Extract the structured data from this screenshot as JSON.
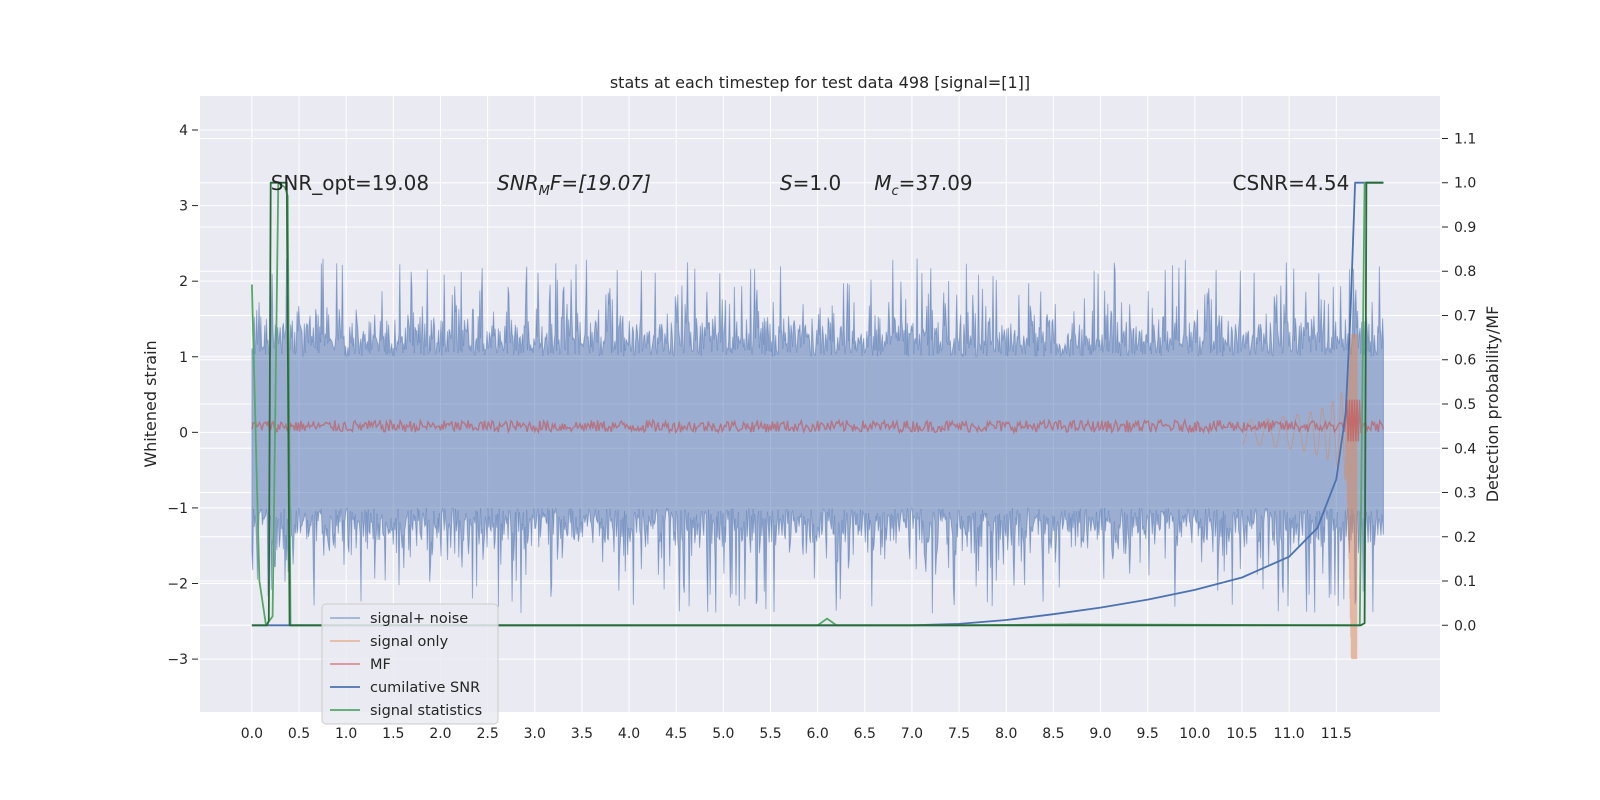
{
  "chart_data": {
    "type": "line",
    "title": "stats at each timestep for test data 498 [signal=[1]]",
    "ylabel": "Whitened strain",
    "y2label": "Detection probability/MF",
    "xlim": [
      -0.55,
      12.6
    ],
    "ylim": [
      -3.7,
      4.45
    ],
    "y2lim": [
      -0.196,
      1.196
    ],
    "x_ticks": [
      "0.0",
      "0.5",
      "1.0",
      "1.5",
      "2.0",
      "2.5",
      "3.0",
      "3.5",
      "4.0",
      "4.5",
      "5.0",
      "5.5",
      "6.0",
      "6.5",
      "7.0",
      "7.5",
      "8.0",
      "8.5",
      "9.0",
      "9.5",
      "10.0",
      "10.5",
      "11.0",
      "11.5"
    ],
    "y_ticks": [
      "−3",
      "−2",
      "−1",
      "0",
      "1",
      "2",
      "3",
      "4"
    ],
    "y2_ticks": [
      "0.0",
      "0.1",
      "0.2",
      "0.3",
      "0.4",
      "0.5",
      "0.6",
      "0.7",
      "0.8",
      "0.9",
      "1.0",
      "1.1"
    ],
    "grid": true,
    "legend_position": "lower-left",
    "annotations": [
      {
        "text": "SNR_opt=19.08",
        "x": 0.2,
        "y": 3.3,
        "italic": false
      },
      {
        "text": "SNR",
        "sub": "M",
        "after": "F=[19.07]",
        "x": 2.6,
        "y": 3.3,
        "italic": true
      },
      {
        "text": "S",
        "after": "=1.0",
        "x": 5.6,
        "y": 3.3,
        "italic": true
      },
      {
        "text": "M",
        "sub": "c",
        "after": "=37.09",
        "x": 6.6,
        "y": 3.3,
        "italic": true
      },
      {
        "text": "CSNR=4.54",
        "x": 10.4,
        "y": 3.3,
        "italic": false
      }
    ],
    "series": [
      {
        "name": "signal+ noise",
        "axis": "left",
        "color": "#4c72b0",
        "alpha": 0.5,
        "kind": "noise_band",
        "x_range": [
          0.0,
          12.0
        ],
        "band_core": [
          -1.0,
          1.0
        ],
        "peak_max": 2.3,
        "trough_min": -2.7
      },
      {
        "name": "signal only",
        "axis": "left",
        "color": "#dd8452",
        "alpha": 0.5,
        "kind": "chirp",
        "x_range": [
          10.5,
          11.8
        ],
        "peak": 1.3,
        "trough": -3.0
      },
      {
        "name": "MF",
        "axis": "left",
        "color": "#c44e52",
        "alpha": 0.6,
        "kind": "mf_band",
        "x_range": [
          0.0,
          12.0
        ],
        "center": 0.08,
        "amplitude": 0.08
      },
      {
        "name": "cumilative SNR",
        "axis": "right",
        "color": "#4c72b0",
        "kind": "curve",
        "points": [
          [
            0.0,
            0.0
          ],
          [
            7.0,
            0.0
          ],
          [
            7.5,
            0.003
          ],
          [
            8.0,
            0.012
          ],
          [
            8.5,
            0.025
          ],
          [
            9.0,
            0.04
          ],
          [
            9.5,
            0.058
          ],
          [
            10.0,
            0.08
          ],
          [
            10.5,
            0.108
          ],
          [
            11.0,
            0.155
          ],
          [
            11.3,
            0.22
          ],
          [
            11.5,
            0.33
          ],
          [
            11.6,
            0.48
          ],
          [
            11.65,
            0.7
          ],
          [
            11.7,
            1.0
          ],
          [
            12.0,
            1.0
          ]
        ]
      },
      {
        "name": "signal statistics",
        "axis": "right",
        "color": "#55a868",
        "kind": "curve",
        "points": [
          [
            0.0,
            0.77
          ],
          [
            0.08,
            0.1
          ],
          [
            0.15,
            0.0
          ],
          [
            0.22,
            0.02
          ],
          [
            0.28,
            1.0
          ],
          [
            0.35,
            0.99
          ],
          [
            0.38,
            0.97
          ],
          [
            0.41,
            0.0
          ],
          [
            6.0,
            0.0
          ],
          [
            6.1,
            0.015
          ],
          [
            6.2,
            0.0
          ],
          [
            7.5,
            0.0
          ],
          [
            8.7,
            0.002
          ],
          [
            11.75,
            0.0
          ],
          [
            11.8,
            1.0
          ],
          [
            12.0,
            1.0
          ]
        ]
      },
      {
        "name": "",
        "axis": "right",
        "color": "#2a6b3a",
        "kind": "curve",
        "legend": false,
        "points": [
          [
            0.0,
            0.0
          ],
          [
            0.16,
            0.0
          ],
          [
            0.18,
            0.01
          ],
          [
            0.2,
            1.0
          ],
          [
            0.37,
            1.0
          ],
          [
            0.4,
            0.0
          ],
          [
            11.76,
            0.0
          ],
          [
            11.8,
            0.005
          ],
          [
            11.82,
            1.0
          ],
          [
            12.0,
            1.0
          ]
        ]
      }
    ]
  },
  "legend": {
    "items": [
      {
        "label": "signal+ noise",
        "color": "#9fb1d4"
      },
      {
        "label": "signal only",
        "color": "#e7b7a0"
      },
      {
        "label": "MF",
        "color": "#d98f93"
      },
      {
        "label": "cumilative SNR",
        "color": "#4c72b0"
      },
      {
        "label": "signal statistics",
        "color": "#55a868"
      }
    ]
  }
}
